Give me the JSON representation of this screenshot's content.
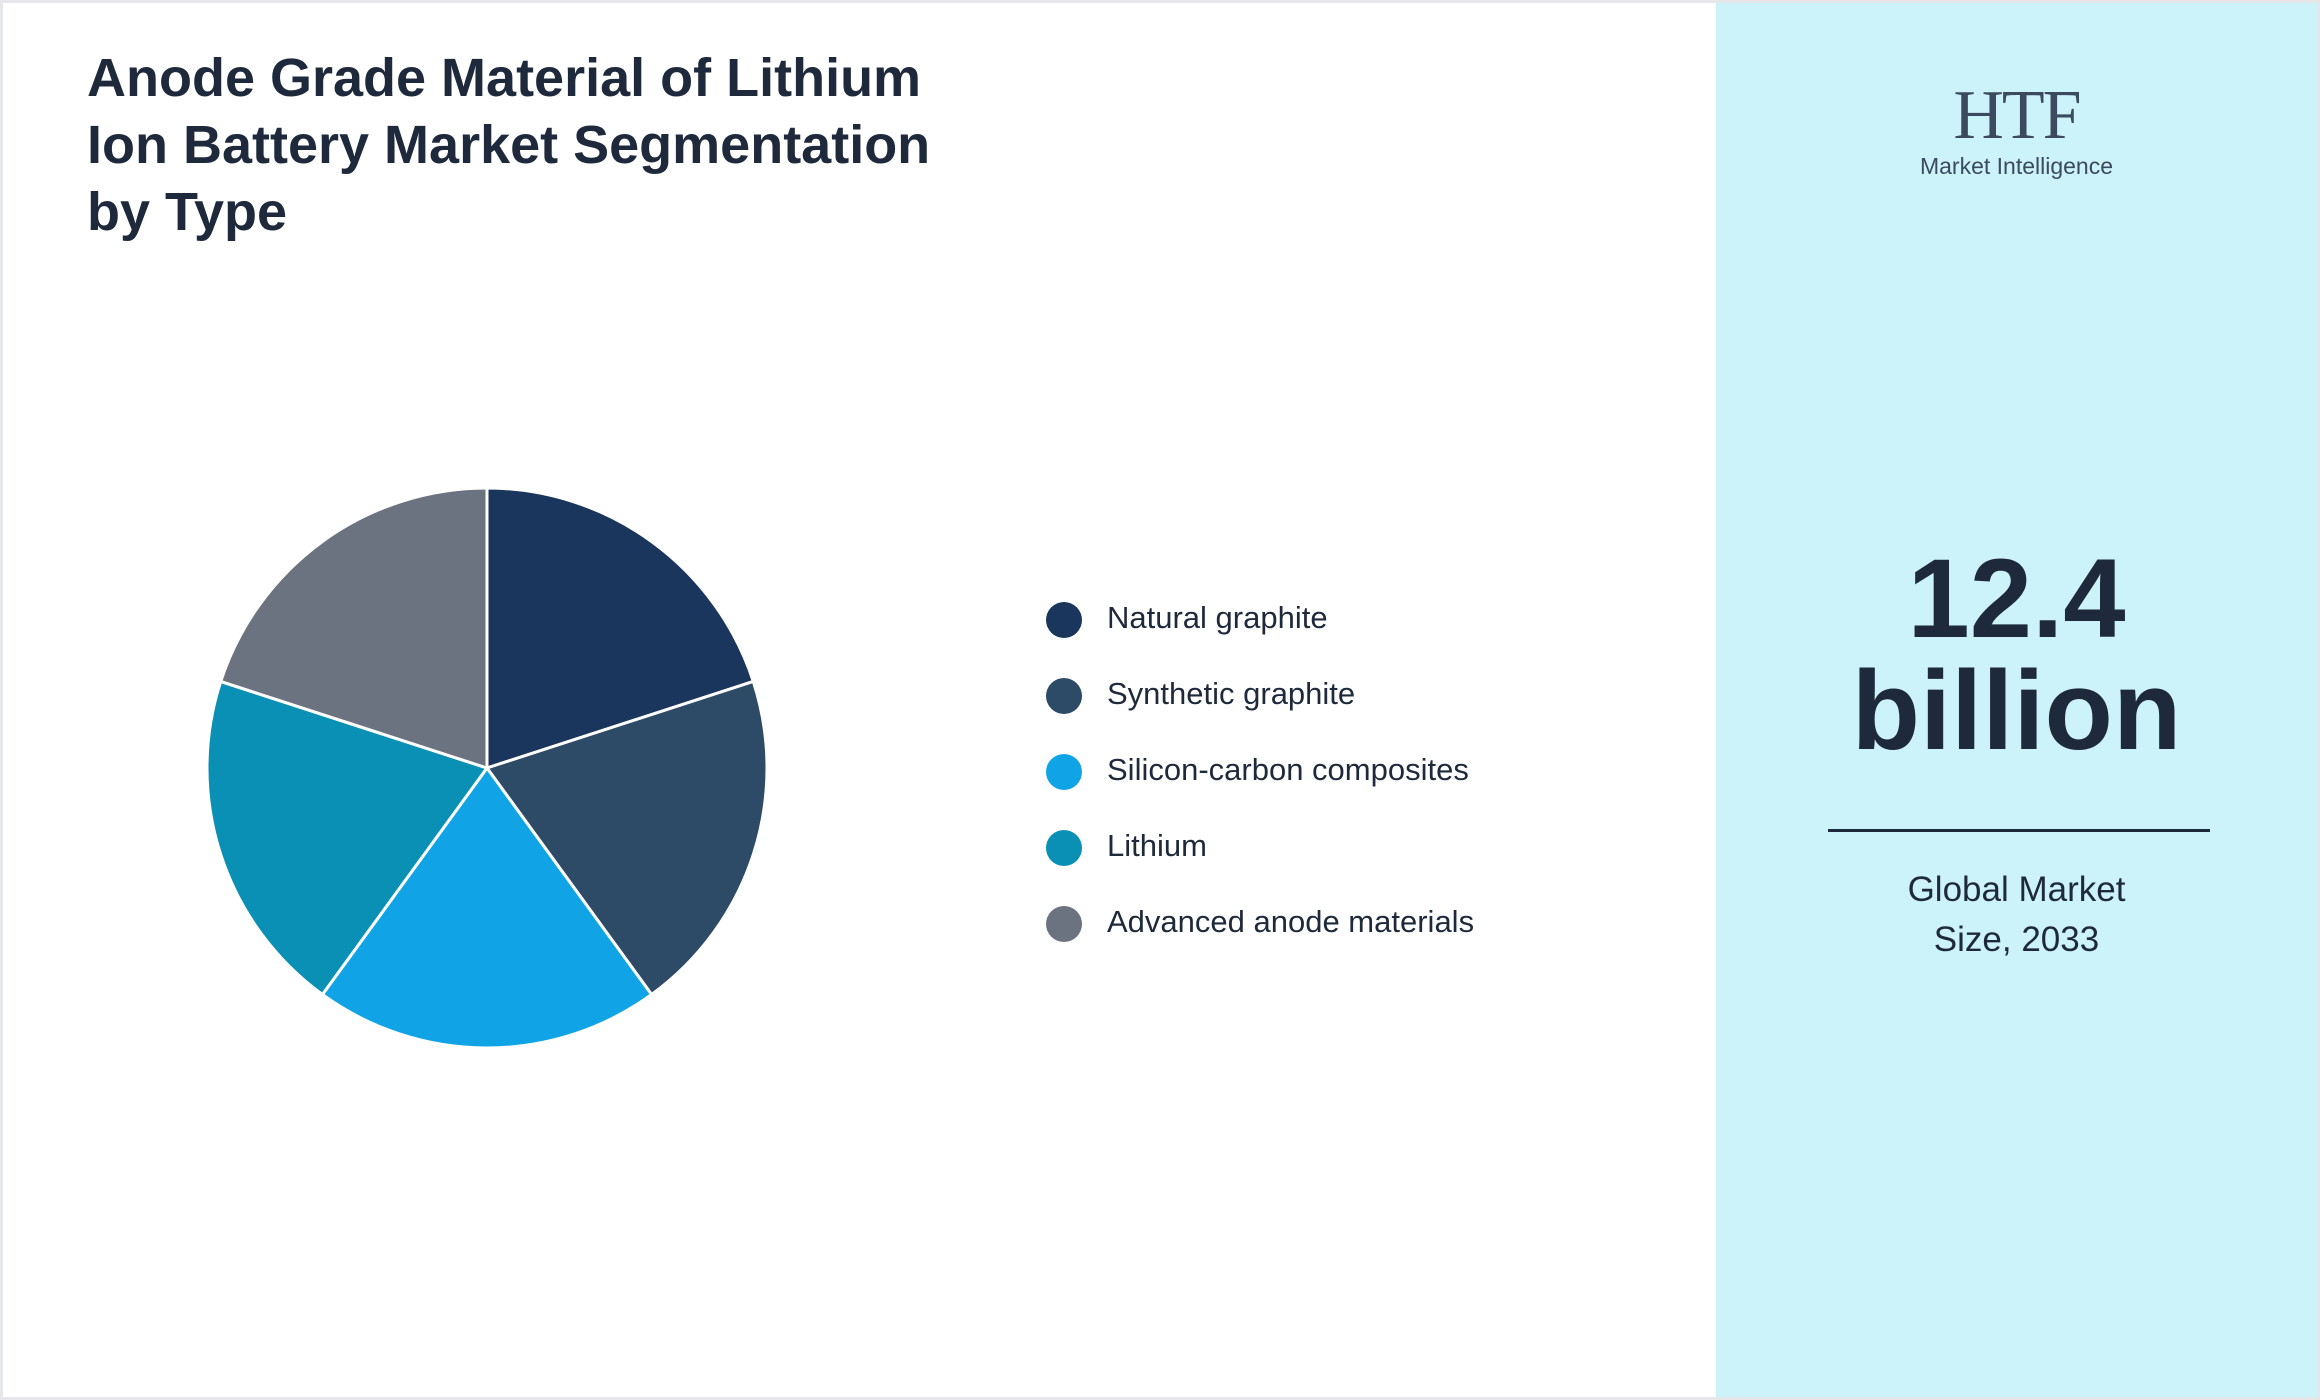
{
  "chart_data": {
    "type": "pie",
    "title": "Anode Grade Material of Lithium Ion Battery Market Segmentation by Type",
    "categories": [
      "Natural graphite",
      "Synthetic graphite",
      "Silicon-carbon composites",
      "Lithium",
      "Advanced anode materials"
    ],
    "values": [
      20,
      20,
      20,
      20,
      20
    ],
    "colors": [
      "#1b365d",
      "#2d4a66",
      "#10a4e6",
      "#0a8fb5",
      "#6b7280"
    ]
  },
  "logo": {
    "name": "HTF",
    "tagline": "Market Intelligence"
  },
  "highlight": {
    "value": "12.4 billion",
    "caption": "Global Market Size, 2033"
  }
}
